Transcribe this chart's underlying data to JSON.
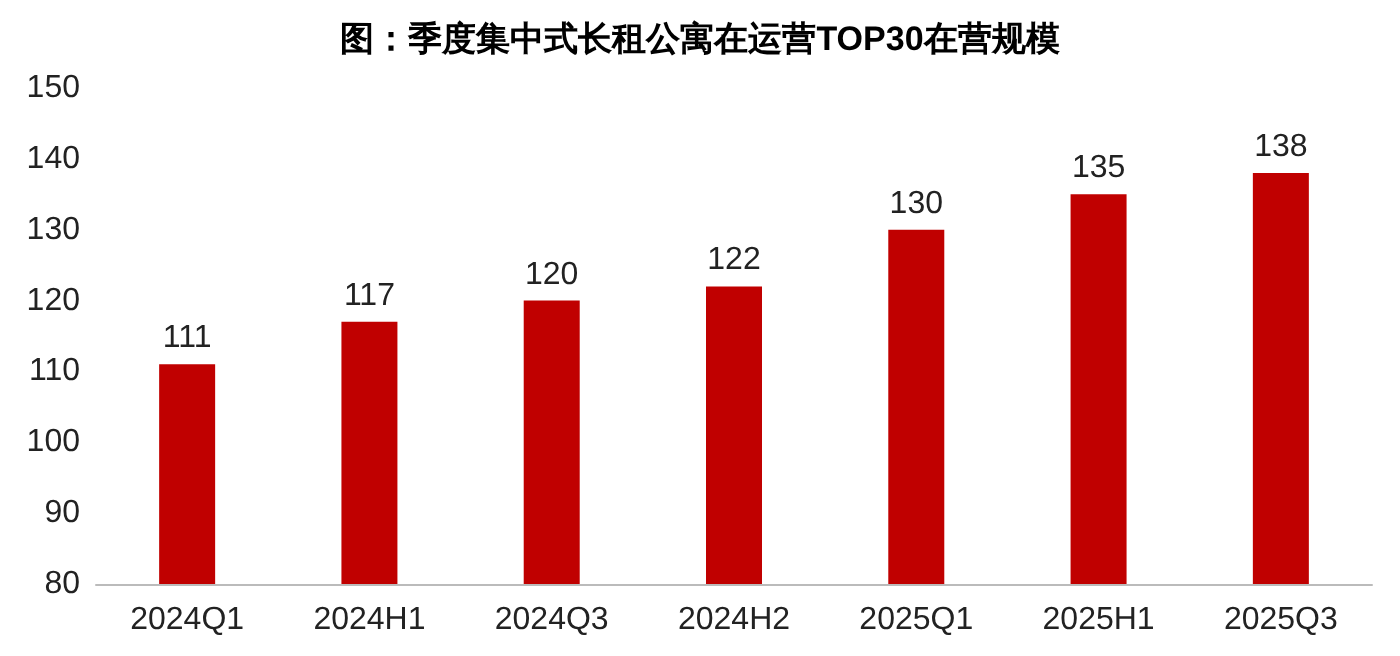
{
  "chart_data": {
    "type": "bar",
    "title": "图：季度集中式长租公寓在运营TOP30在营规模",
    "categories": [
      "2024Q1",
      "2024H1",
      "2024Q3",
      "2024H2",
      "2025Q1",
      "2025H1",
      "2025Q3"
    ],
    "values": [
      111,
      117,
      120,
      122,
      130,
      135,
      138
    ],
    "color": "#c00000",
    "ylim": [
      80,
      150
    ],
    "yticks": [
      80,
      90,
      100,
      110,
      120,
      130,
      140,
      150
    ],
    "data_labels": true,
    "grid": false
  }
}
